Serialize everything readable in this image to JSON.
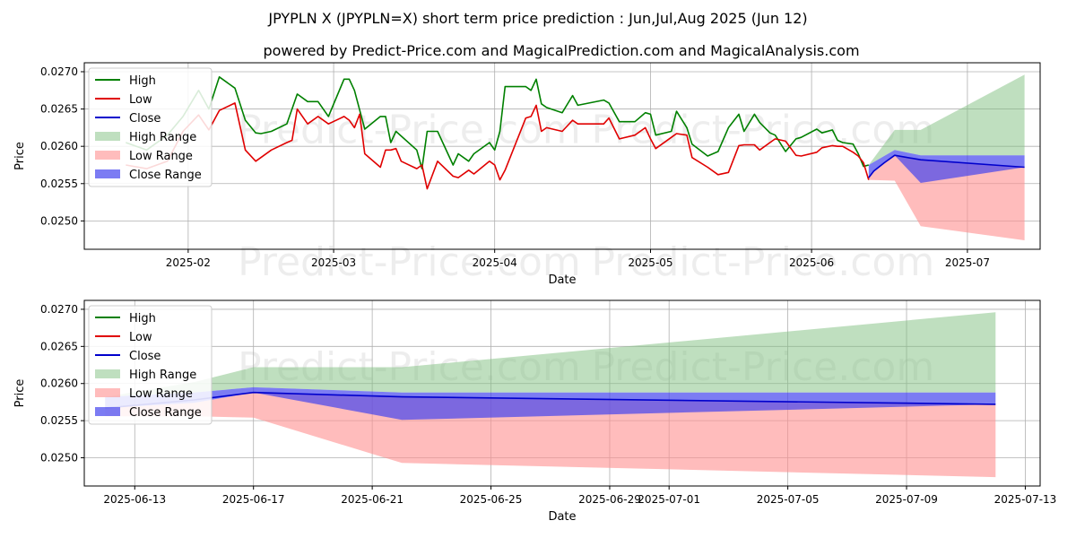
{
  "title": "JPYPLN X (JPYPLN=X) short term price prediction : Jun,Jul,Aug 2025 (Jun 12)",
  "subtitle": "powered by Predict-Price.com and MagicalPrediction.com and MagicalAnalysis.com",
  "watermark": "Predict-Price.com",
  "colors": {
    "high": "#008000",
    "low": "#e00000",
    "close": "#0000cc",
    "high_range": "#7fbf7f",
    "low_range": "#ff9090",
    "close_range": "#4444ee",
    "grid": "#b0b0b0"
  },
  "chart_data": [
    {
      "type": "line",
      "id": "history",
      "xlabel": "Date",
      "ylabel": "Price",
      "xlim": [
        "2025-01-12",
        "2025-07-15"
      ],
      "ylim": [
        0.02462,
        0.02712
      ],
      "yticks": [
        0.025,
        0.0255,
        0.026,
        0.0265,
        0.027
      ],
      "ytick_labels": [
        "0.0250",
        "0.0255",
        "0.0260",
        "0.0265",
        "0.0270"
      ],
      "xticks": [
        "2025-02-01",
        "2025-03-01",
        "2025-04-01",
        "2025-05-01",
        "2025-06-01",
        "2025-07-01"
      ],
      "xtick_labels": [
        "2025-02",
        "2025-03",
        "2025-04",
        "2025-05",
        "2025-06",
        "2025-07"
      ],
      "legend": [
        "High",
        "Low",
        "Close",
        "High Range",
        "Low Range",
        "Close Range"
      ],
      "legend_position": "top-left",
      "series": [
        {
          "name": "High",
          "dates": [
            "2025-01-20",
            "2025-01-24",
            "2025-01-28",
            "2025-01-31",
            "2025-02-03",
            "2025-02-05",
            "2025-02-07",
            "2025-02-10",
            "2025-02-12",
            "2025-02-14",
            "2025-02-15",
            "2025-02-17",
            "2025-02-20",
            "2025-02-22",
            "2025-02-24",
            "2025-02-26",
            "2025-02-28",
            "2025-03-03",
            "2025-03-04",
            "2025-03-05",
            "2025-03-07",
            "2025-03-10",
            "2025-03-11",
            "2025-03-12",
            "2025-03-13",
            "2025-03-17",
            "2025-03-18",
            "2025-03-19",
            "2025-03-21",
            "2025-03-24",
            "2025-03-25",
            "2025-03-27",
            "2025-03-28",
            "2025-03-31",
            "2025-04-01",
            "2025-04-02",
            "2025-04-03",
            "2025-04-07",
            "2025-04-08",
            "2025-04-09",
            "2025-04-10",
            "2025-04-11",
            "2025-04-14",
            "2025-04-16",
            "2025-04-17",
            "2025-04-22",
            "2025-04-23",
            "2025-04-25",
            "2025-04-28",
            "2025-04-30",
            "2025-05-01",
            "2025-05-02",
            "2025-05-05",
            "2025-05-06",
            "2025-05-08",
            "2025-05-09",
            "2025-05-12",
            "2025-05-14",
            "2025-05-16",
            "2025-05-18",
            "2025-05-19",
            "2025-05-21",
            "2025-05-22",
            "2025-05-24",
            "2025-05-25",
            "2025-05-27",
            "2025-05-29",
            "2025-05-30",
            "2025-06-02",
            "2025-06-03",
            "2025-06-05",
            "2025-06-06",
            "2025-06-07",
            "2025-06-09",
            "2025-06-10",
            "2025-06-11",
            "2025-06-12"
          ],
          "values": [
            0.02605,
            0.02595,
            0.02615,
            0.0264,
            0.02675,
            0.0265,
            0.02693,
            0.02678,
            0.02635,
            0.02618,
            0.02617,
            0.0262,
            0.0263,
            0.0267,
            0.0266,
            0.0266,
            0.0264,
            0.0269,
            0.0269,
            0.02675,
            0.02623,
            0.0264,
            0.0264,
            0.02605,
            0.0262,
            0.02595,
            0.0257,
            0.0262,
            0.0262,
            0.02575,
            0.0259,
            0.0258,
            0.0259,
            0.02605,
            0.02595,
            0.0262,
            0.0268,
            0.0268,
            0.02675,
            0.0269,
            0.02657,
            0.02652,
            0.02645,
            0.02668,
            0.02655,
            0.02662,
            0.02658,
            0.02633,
            0.02633,
            0.02645,
            0.02643,
            0.02615,
            0.0262,
            0.02647,
            0.02625,
            0.02603,
            0.02587,
            0.02593,
            0.02625,
            0.02643,
            0.0262,
            0.02643,
            0.02632,
            0.02618,
            0.02615,
            0.02593,
            0.0261,
            0.02612,
            0.02623,
            0.02618,
            0.02622,
            0.02608,
            0.02605,
            0.02603,
            0.0259,
            0.02573,
            0.02575
          ]
        },
        {
          "name": "Low",
          "dates": [
            "2025-01-20",
            "2025-01-24",
            "2025-01-28",
            "2025-01-31",
            "2025-02-03",
            "2025-02-05",
            "2025-02-07",
            "2025-02-10",
            "2025-02-12",
            "2025-02-14",
            "2025-02-17",
            "2025-02-20",
            "2025-02-21",
            "2025-02-22",
            "2025-02-24",
            "2025-02-26",
            "2025-02-28",
            "2025-03-03",
            "2025-03-04",
            "2025-03-05",
            "2025-03-06",
            "2025-03-07",
            "2025-03-10",
            "2025-03-11",
            "2025-03-12",
            "2025-03-13",
            "2025-03-14",
            "2025-03-17",
            "2025-03-18",
            "2025-03-19",
            "2025-03-21",
            "2025-03-24",
            "2025-03-25",
            "2025-03-27",
            "2025-03-28",
            "2025-03-31",
            "2025-04-01",
            "2025-04-02",
            "2025-04-03",
            "2025-04-07",
            "2025-04-08",
            "2025-04-09",
            "2025-04-10",
            "2025-04-11",
            "2025-04-14",
            "2025-04-16",
            "2025-04-17",
            "2025-04-22",
            "2025-04-23",
            "2025-04-25",
            "2025-04-28",
            "2025-04-30",
            "2025-05-01",
            "2025-05-02",
            "2025-05-05",
            "2025-05-06",
            "2025-05-08",
            "2025-05-09",
            "2025-05-12",
            "2025-05-14",
            "2025-05-16",
            "2025-05-18",
            "2025-05-19",
            "2025-05-21",
            "2025-05-22",
            "2025-05-24",
            "2025-05-25",
            "2025-05-27",
            "2025-05-29",
            "2025-05-30",
            "2025-06-02",
            "2025-06-03",
            "2025-06-05",
            "2025-06-06",
            "2025-06-07",
            "2025-06-09",
            "2025-06-10",
            "2025-06-11",
            "2025-06-12"
          ],
          "values": [
            0.02575,
            0.0257,
            0.0258,
            0.0262,
            0.02642,
            0.02622,
            0.02648,
            0.02658,
            0.02595,
            0.0258,
            0.02595,
            0.02605,
            0.02608,
            0.0265,
            0.0263,
            0.0264,
            0.0263,
            0.0264,
            0.02635,
            0.02625,
            0.02643,
            0.0259,
            0.02572,
            0.02595,
            0.02595,
            0.02597,
            0.0258,
            0.0257,
            0.02575,
            0.02543,
            0.0258,
            0.0256,
            0.02558,
            0.02568,
            0.02563,
            0.0258,
            0.02575,
            0.02555,
            0.02568,
            0.02638,
            0.0264,
            0.02655,
            0.0262,
            0.02625,
            0.0262,
            0.02635,
            0.0263,
            0.0263,
            0.02638,
            0.0261,
            0.02615,
            0.02625,
            0.0261,
            0.02597,
            0.02612,
            0.02617,
            0.02615,
            0.02585,
            0.02572,
            0.02562,
            0.02565,
            0.02601,
            0.02602,
            0.02602,
            0.02595,
            0.02605,
            0.0261,
            0.02607,
            0.02588,
            0.02587,
            0.02592,
            0.02598,
            0.02601,
            0.026,
            0.026,
            0.02592,
            0.02587,
            0.02578,
            0.02555
          ]
        },
        {
          "name": "Close",
          "dates": [
            "2025-06-12",
            "2025-06-13",
            "2025-06-15",
            "2025-06-17",
            "2025-06-22",
            "2025-07-12"
          ],
          "values": [
            0.02558,
            0.02567,
            0.02578,
            0.02588,
            0.02582,
            0.02572
          ]
        }
      ],
      "ranges": [
        {
          "name": "High Range",
          "dates": [
            "2025-06-12",
            "2025-06-17",
            "2025-06-22",
            "2025-07-12"
          ],
          "upper": [
            0.02575,
            0.02622,
            0.02622,
            0.02696
          ],
          "lower": [
            0.02575,
            0.02595,
            0.02588,
            0.02588
          ]
        },
        {
          "name": "Low Range",
          "dates": [
            "2025-06-12",
            "2025-06-17",
            "2025-06-22",
            "2025-07-12"
          ],
          "upper": [
            0.0256,
            0.02588,
            0.02582,
            0.02572
          ],
          "lower": [
            0.02555,
            0.02554,
            0.02493,
            0.02474
          ]
        },
        {
          "name": "Close Range",
          "dates": [
            "2025-06-12",
            "2025-06-17",
            "2025-06-22",
            "2025-07-12"
          ],
          "upper": [
            0.02575,
            0.02595,
            0.02588,
            0.02588
          ],
          "lower": [
            0.0256,
            0.02588,
            0.02551,
            0.02572
          ]
        }
      ]
    },
    {
      "type": "line",
      "id": "forecast",
      "xlabel": "Date",
      "ylabel": "Price",
      "xlim": [
        "2025-06-11.3",
        "2025-07-13.5"
      ],
      "ylim": [
        0.02462,
        0.02712
      ],
      "yticks": [
        0.025,
        0.0255,
        0.026,
        0.0265,
        0.027
      ],
      "ytick_labels": [
        "0.0250",
        "0.0255",
        "0.0260",
        "0.0265",
        "0.0270"
      ],
      "xticks": [
        "2025-06-13",
        "2025-06-17",
        "2025-06-21",
        "2025-06-25",
        "2025-06-29",
        "2025-07-01",
        "2025-07-05",
        "2025-07-09",
        "2025-07-13"
      ],
      "xtick_labels": [
        "2025-06-13",
        "2025-06-17",
        "2025-06-21",
        "2025-06-25",
        "2025-06-29",
        "2025-07-01",
        "2025-07-05",
        "2025-07-09",
        "2025-07-13"
      ],
      "legend": [
        "High",
        "Low",
        "Close",
        "High Range",
        "Low Range",
        "Close Range"
      ],
      "legend_position": "top-left",
      "series": [
        {
          "name": "Close",
          "dates": [
            "2025-06-12",
            "2025-06-15",
            "2025-06-17",
            "2025-06-22",
            "2025-07-12"
          ],
          "values": [
            0.02567,
            0.02578,
            0.02588,
            0.02582,
            0.02572
          ]
        }
      ],
      "ranges": [
        {
          "name": "High Range",
          "dates": [
            "2025-06-12",
            "2025-06-15",
            "2025-06-17",
            "2025-06-22",
            "2025-07-12"
          ],
          "upper": [
            0.02582,
            0.02602,
            0.02622,
            0.02622,
            0.02696
          ],
          "lower": [
            0.02582,
            0.02588,
            0.02595,
            0.02588,
            0.02588
          ]
        },
        {
          "name": "Low Range",
          "dates": [
            "2025-06-12",
            "2025-06-15",
            "2025-06-17",
            "2025-06-22",
            "2025-07-12"
          ],
          "upper": [
            0.02567,
            0.02574,
            0.02588,
            0.02582,
            0.02572
          ],
          "lower": [
            0.02556,
            0.02556,
            0.02554,
            0.02493,
            0.02474
          ]
        },
        {
          "name": "Close Range",
          "dates": [
            "2025-06-12",
            "2025-06-15",
            "2025-06-17",
            "2025-06-22",
            "2025-07-12"
          ],
          "upper": [
            0.02582,
            0.02588,
            0.02595,
            0.02588,
            0.02588
          ],
          "lower": [
            0.02567,
            0.02574,
            0.02588,
            0.02551,
            0.02572
          ]
        }
      ]
    }
  ]
}
